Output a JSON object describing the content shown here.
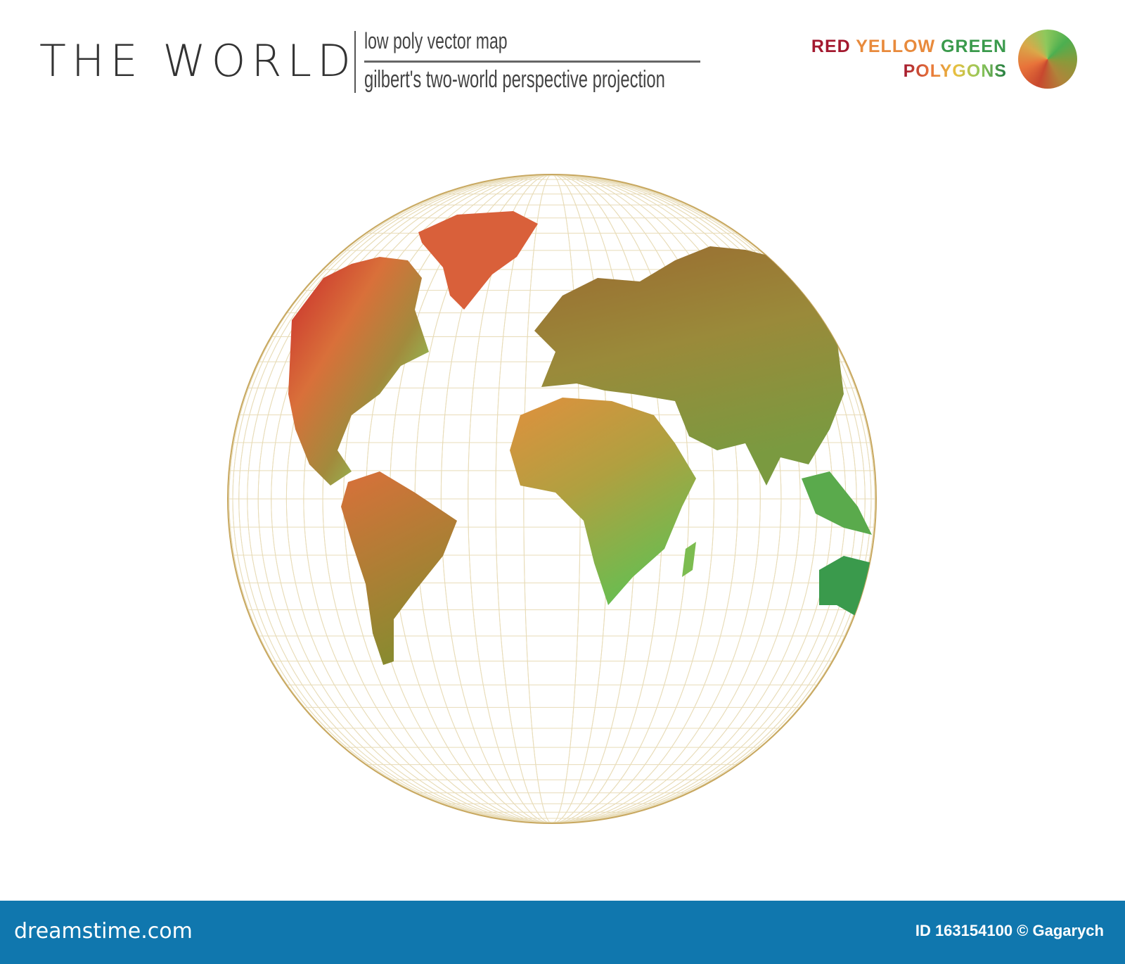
{
  "header": {
    "title": "THE WORLD",
    "subtitle": "low poly vector map",
    "projection": "gilbert's two-world perspective projection"
  },
  "legend": {
    "words": [
      {
        "text": "RED",
        "color": "#a3192f"
      },
      {
        "text": "YELLOW",
        "color": "#e88a3c"
      },
      {
        "text": "GREEN",
        "color": "#3a9a4c"
      }
    ],
    "line2": "POLYGONS",
    "palette": [
      "#c8242a",
      "#e8733a",
      "#d9a94a",
      "#8fc85c",
      "#3a9a4c"
    ]
  },
  "map": {
    "graticule_color": "#e8dcb8",
    "outline_color": "#c8a860"
  },
  "footer": {
    "logo": "dreamstime.com",
    "credit": "ID 163154100 © Gagarych",
    "background": "#1077ae"
  }
}
